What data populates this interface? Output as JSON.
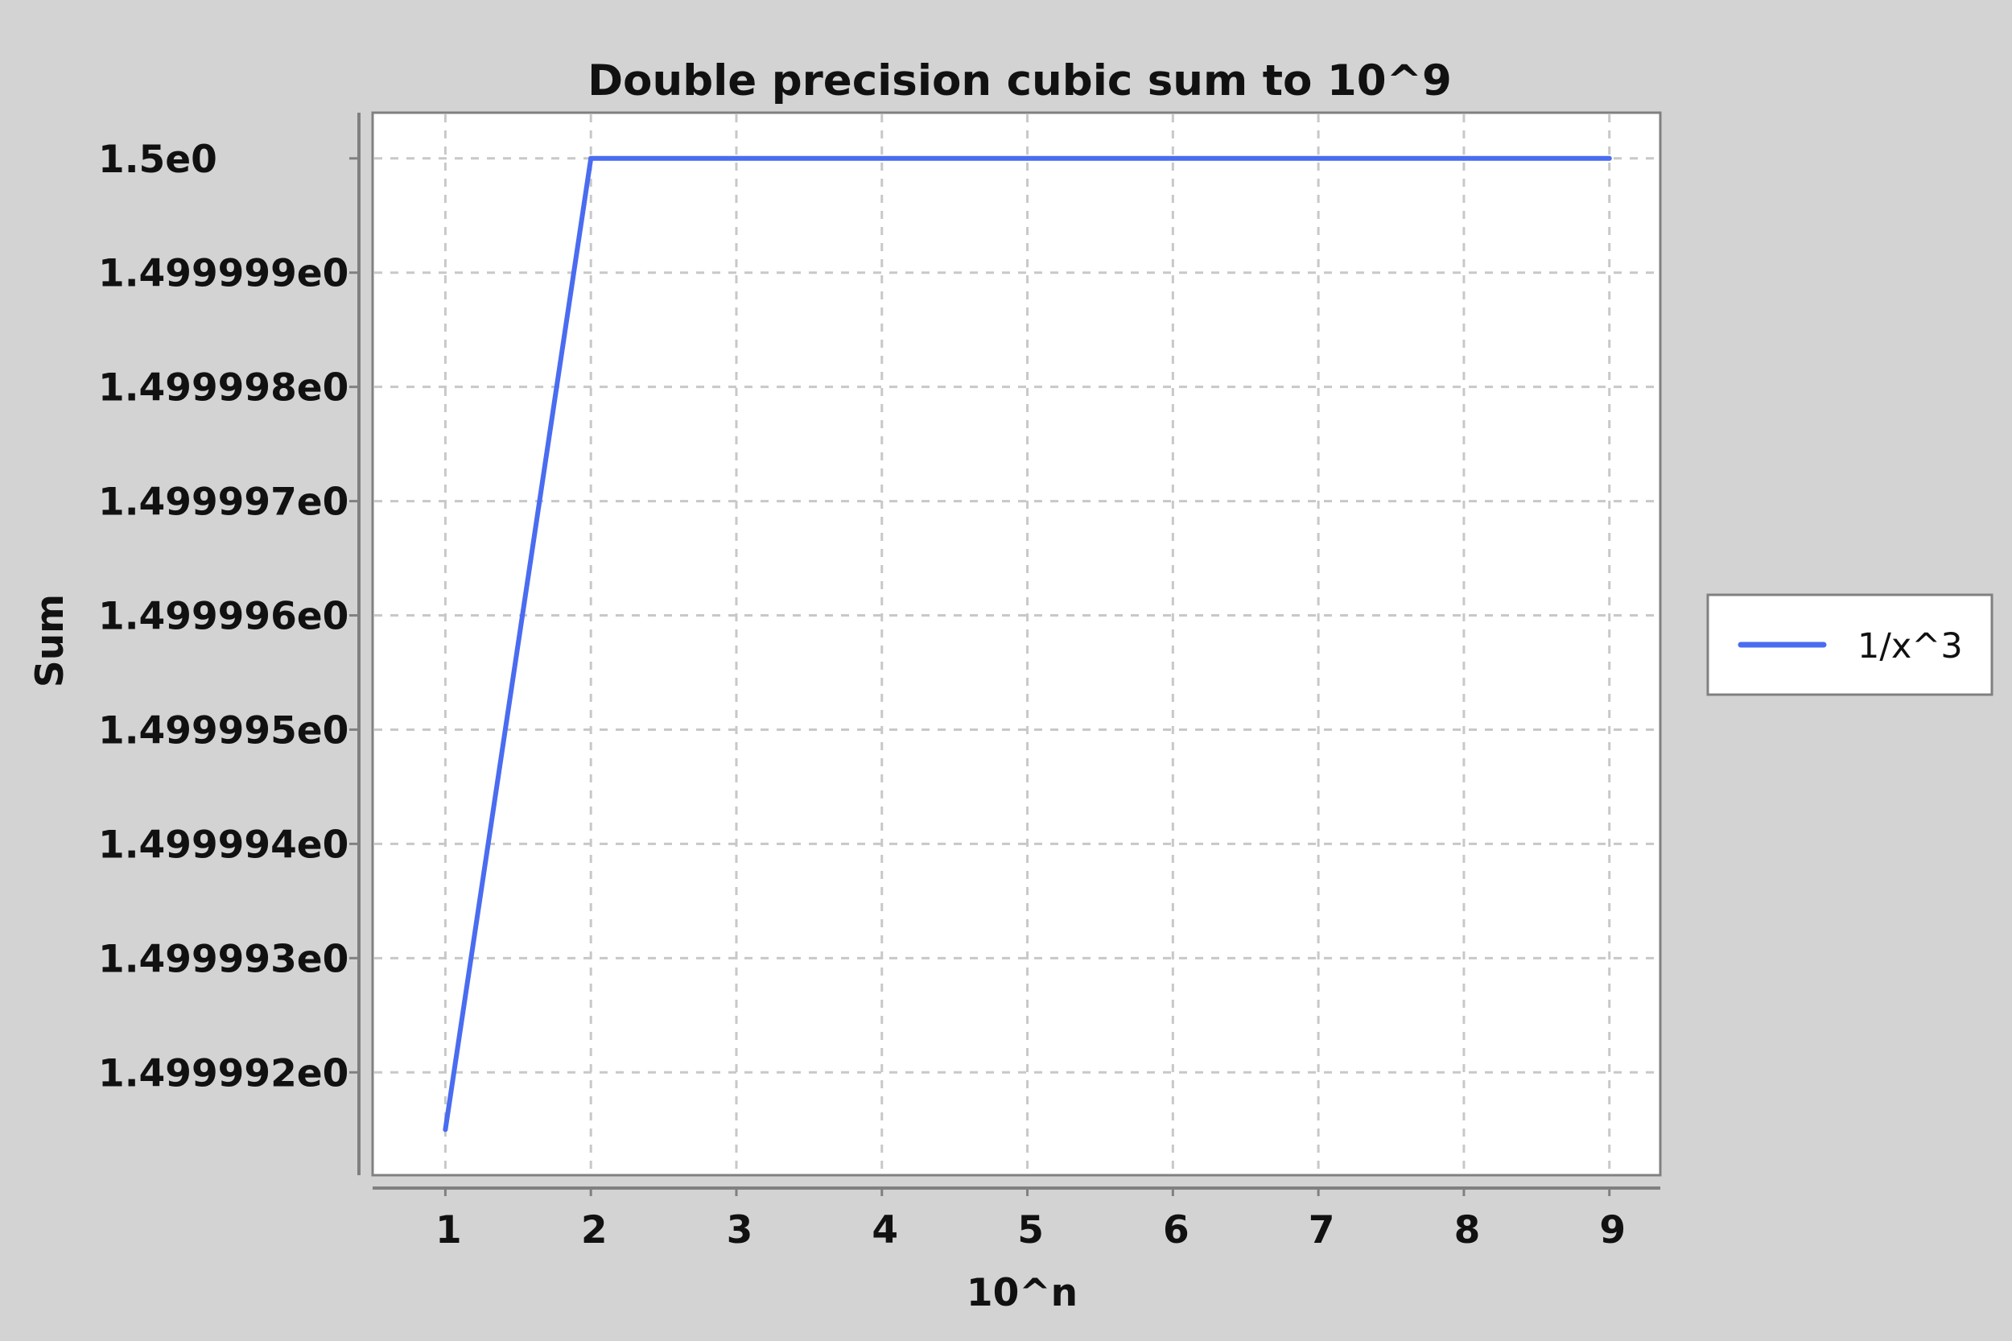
{
  "chart_data": {
    "type": "line",
    "title": "Double precision cubic sum to 10^9",
    "xlabel": "10^n",
    "ylabel": "Sum",
    "x": [
      1,
      2,
      3,
      4,
      5,
      6,
      7,
      8,
      9
    ],
    "x_ticks": [
      "1",
      "2",
      "3",
      "4",
      "5",
      "6",
      "7",
      "8",
      "9"
    ],
    "xlim": [
      0.5,
      9.35
    ],
    "ylim": [
      1.4999911,
      1.5000004
    ],
    "y_ticks": [
      {
        "value": 1.5,
        "label": "1.5e0"
      },
      {
        "value": 1.499999,
        "label": "1.499999e0"
      },
      {
        "value": 1.499998,
        "label": "1.499998e0"
      },
      {
        "value": 1.499997,
        "label": "1.499997e0"
      },
      {
        "value": 1.499996,
        "label": "1.499996e0"
      },
      {
        "value": 1.499995,
        "label": "1.499995e0"
      },
      {
        "value": 1.499994,
        "label": "1.499994e0"
      },
      {
        "value": 1.499993,
        "label": "1.499993e0"
      },
      {
        "value": 1.499992,
        "label": "1.499992e0"
      }
    ],
    "grid": true,
    "legend_position": "right",
    "series": [
      {
        "name": "1/x^3",
        "color": "#4a6cf0",
        "values": [
          1.4999915,
          1.5,
          1.5,
          1.5,
          1.5,
          1.5,
          1.5,
          1.5,
          1.5
        ]
      }
    ]
  }
}
